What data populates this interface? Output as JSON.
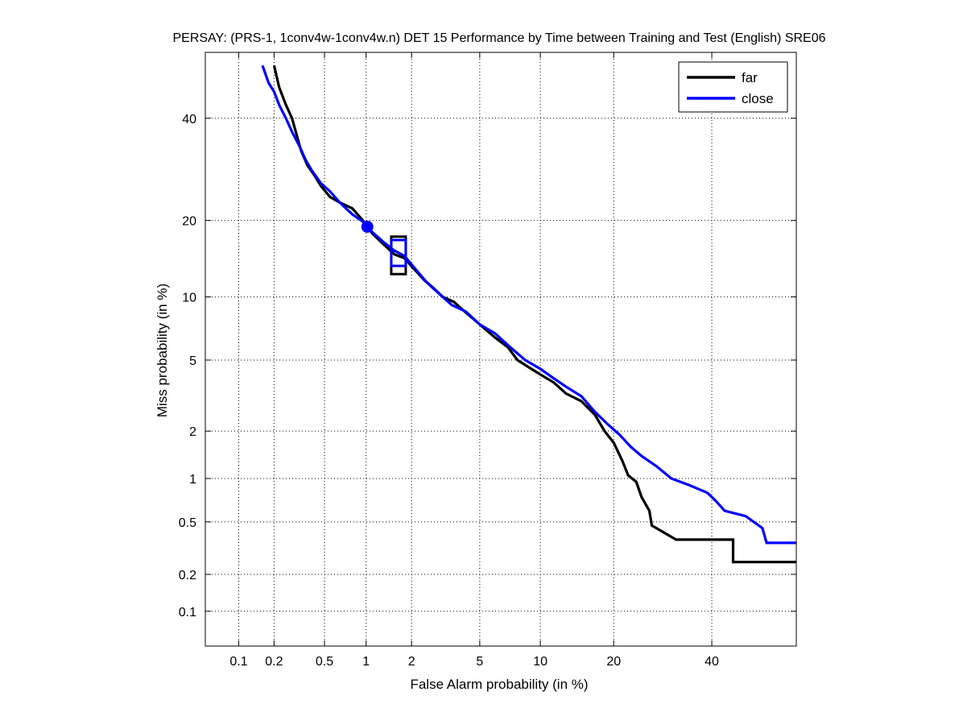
{
  "chart_data": {
    "type": "line",
    "title": "PERSAY: (PRS-1, 1conv4w-1conv4w.n) DET 15 Performance by Time between Training and Test (English) SRE06",
    "xlabel": "False Alarm probability (in %)",
    "ylabel": "Miss probability (in %)",
    "x_scale": "probit",
    "y_scale": "probit",
    "xlim": [
      0.05,
      60
    ],
    "ylim": [
      0.05,
      55
    ],
    "x_ticks": [
      0.1,
      0.2,
      0.5,
      1,
      2,
      5,
      10,
      20,
      40
    ],
    "x_tick_labels": [
      "0.1",
      "0.2",
      "0.5",
      "1",
      "2",
      "5",
      "10",
      "20",
      "40"
    ],
    "y_ticks": [
      0.1,
      0.2,
      0.5,
      1,
      2,
      5,
      10,
      20,
      40
    ],
    "y_tick_labels": [
      "0.1",
      "0.2",
      "0.5",
      "1",
      "2",
      "5",
      "10",
      "20",
      "40"
    ],
    "grid": true,
    "legend_position": "top-right",
    "series": [
      {
        "name": "far",
        "color": "#000000",
        "points": [
          [
            0.2,
            52
          ],
          [
            0.22,
            47
          ],
          [
            0.25,
            43
          ],
          [
            0.28,
            40
          ],
          [
            0.3,
            37
          ],
          [
            0.33,
            33
          ],
          [
            0.37,
            30
          ],
          [
            0.42,
            28
          ],
          [
            0.47,
            26
          ],
          [
            0.55,
            24
          ],
          [
            0.65,
            23
          ],
          [
            0.8,
            22
          ],
          [
            0.95,
            20
          ],
          [
            1.1,
            18
          ],
          [
            1.3,
            16.5
          ],
          [
            1.55,
            15
          ],
          [
            1.8,
            14.5
          ],
          [
            2.1,
            13
          ],
          [
            2.4,
            11.8
          ],
          [
            2.7,
            11
          ],
          [
            3.1,
            10
          ],
          [
            3.6,
            9.5
          ],
          [
            4.2,
            8.5
          ],
          [
            5,
            7.5
          ],
          [
            6,
            6.5
          ],
          [
            7,
            5.8
          ],
          [
            7.8,
            5
          ],
          [
            8.8,
            4.6
          ],
          [
            10,
            4.2
          ],
          [
            11.5,
            3.8
          ],
          [
            13,
            3.3
          ],
          [
            15,
            3.0
          ],
          [
            17,
            2.5
          ],
          [
            18.5,
            2.0
          ],
          [
            20,
            1.7
          ],
          [
            21.5,
            1.3
          ],
          [
            22.5,
            1.05
          ],
          [
            24,
            0.95
          ],
          [
            25,
            0.75
          ],
          [
            26.5,
            0.6
          ],
          [
            27,
            0.47
          ],
          [
            32,
            0.37
          ],
          [
            40,
            0.37
          ],
          [
            45,
            0.37
          ],
          [
            45,
            0.25
          ],
          [
            60,
            0.25
          ]
        ]
      },
      {
        "name": "close",
        "color": "#0000ff",
        "points": [
          [
            0.16,
            52
          ],
          [
            0.18,
            48
          ],
          [
            0.2,
            46
          ],
          [
            0.22,
            43
          ],
          [
            0.25,
            40
          ],
          [
            0.28,
            37
          ],
          [
            0.32,
            34
          ],
          [
            0.36,
            31
          ],
          [
            0.4,
            29
          ],
          [
            0.47,
            26.5
          ],
          [
            0.55,
            25
          ],
          [
            0.65,
            23
          ],
          [
            0.8,
            21
          ],
          [
            0.95,
            19.8
          ],
          [
            1.1,
            18.2
          ],
          [
            1.3,
            16.8
          ],
          [
            1.55,
            15.5
          ],
          [
            1.8,
            14.8
          ],
          [
            2.1,
            13.2
          ],
          [
            2.5,
            11.5
          ],
          [
            3,
            10.2
          ],
          [
            3.5,
            9.2
          ],
          [
            4.2,
            8.6
          ],
          [
            5,
            7.5
          ],
          [
            6,
            6.8
          ],
          [
            7.2,
            5.8
          ],
          [
            8.5,
            5.0
          ],
          [
            10,
            4.5
          ],
          [
            11.5,
            4.0
          ],
          [
            13,
            3.6
          ],
          [
            15,
            3.2
          ],
          [
            17,
            2.6
          ],
          [
            19,
            2.2
          ],
          [
            21,
            1.9
          ],
          [
            23,
            1.6
          ],
          [
            25,
            1.4
          ],
          [
            28,
            1.2
          ],
          [
            31,
            1.0
          ],
          [
            35,
            0.9
          ],
          [
            39,
            0.8
          ],
          [
            41,
            0.7
          ],
          [
            43,
            0.6
          ],
          [
            48,
            0.55
          ],
          [
            52,
            0.45
          ],
          [
            53,
            0.35
          ],
          [
            60,
            0.35
          ]
        ]
      }
    ],
    "markers": [
      {
        "series": "far",
        "type": "box",
        "x": 1.65,
        "y_low": 12.5,
        "y_high": 17.5
      },
      {
        "series": "close",
        "type": "box",
        "x": 1.65,
        "y_low": 13.5,
        "y_high": 17.0
      },
      {
        "series": "close",
        "type": "circle",
        "x": 1.02,
        "y": 19.0
      }
    ]
  }
}
